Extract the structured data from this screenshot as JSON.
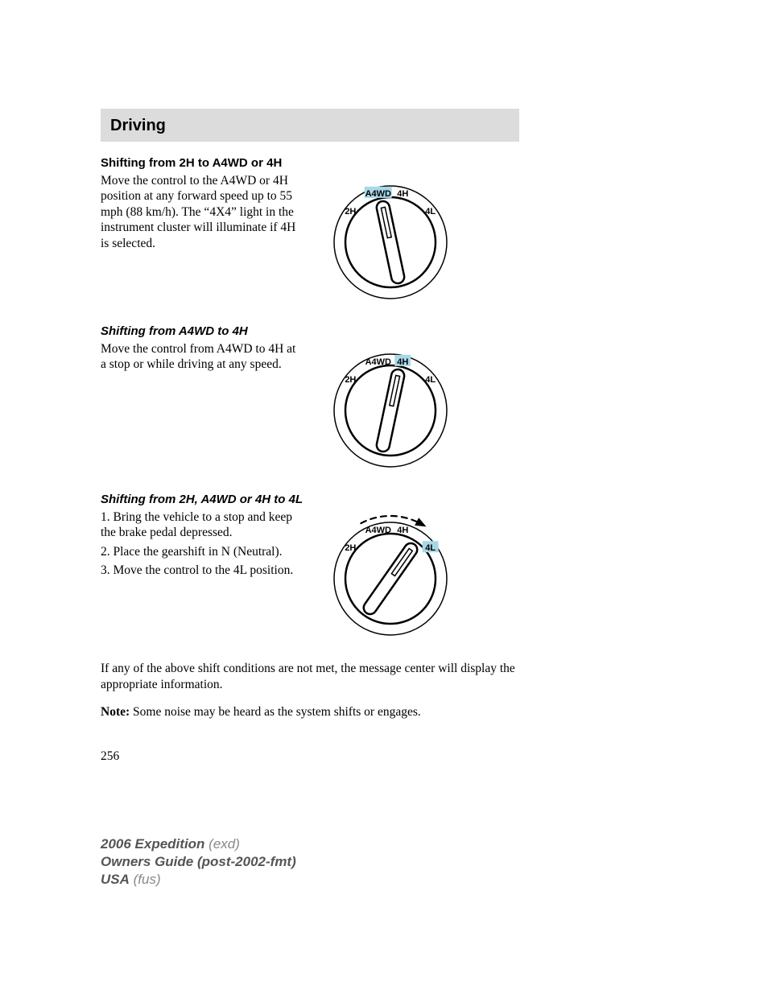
{
  "header": {
    "title": "Driving"
  },
  "section1": {
    "heading": "Shifting from 2H to A4WD or 4H",
    "body": "Move the control to the A4WD or 4H position at any forward speed up to 55 mph (88 km/h). The “4X4” light in the instrument cluster will illuminate if 4H is selected.",
    "dial": {
      "labels": {
        "l2h": "2H",
        "la4wd": "A4WD",
        "l4h": "4H",
        "l4l": "4L"
      },
      "highlight": "A4WD",
      "pointer_angle_deg": -12,
      "show_arrow": false
    }
  },
  "section2": {
    "heading": "Shifting from A4WD to 4H",
    "body": "Move the control from A4WD to 4H at a stop or while driving at any speed.",
    "dial": {
      "labels": {
        "l2h": "2H",
        "la4wd": "A4WD",
        "l4h": "4H",
        "l4l": "4L"
      },
      "highlight": "4H",
      "pointer_angle_deg": 12,
      "show_arrow": false
    }
  },
  "section3": {
    "heading": "Shifting from 2H, A4WD or 4H to 4L",
    "steps": [
      "1. Bring the vehicle to a stop and keep the brake pedal depressed.",
      "2. Place the gearshift in N (Neutral).",
      "3. Move the control to the 4L position."
    ],
    "dial": {
      "labels": {
        "l2h": "2H",
        "la4wd": "A4WD",
        "l4h": "4H",
        "l4l": "4L"
      },
      "highlight": "4L",
      "pointer_angle_deg": 35,
      "show_arrow": true
    }
  },
  "closing": {
    "p1": "If any of the above shift conditions are not met, the message center will display the appropriate information.",
    "note_label": "Note:",
    "note_body": " Some noise may be heard as the system shifts or engages."
  },
  "page_number": "256",
  "footer": {
    "line1a": "2006 Expedition",
    "line1b": " (exd)",
    "line2a": "Owners Guide (post-2002-fmt)",
    "line3a": "USA",
    "line3b": " (fus)"
  },
  "style": {
    "highlight_color": "#a8d8e8",
    "dial_stroke": "#000000",
    "dial_outer_r": 70,
    "dial_inner_r": 56,
    "label_fontsize": 11,
    "label_fontweight": "bold"
  }
}
